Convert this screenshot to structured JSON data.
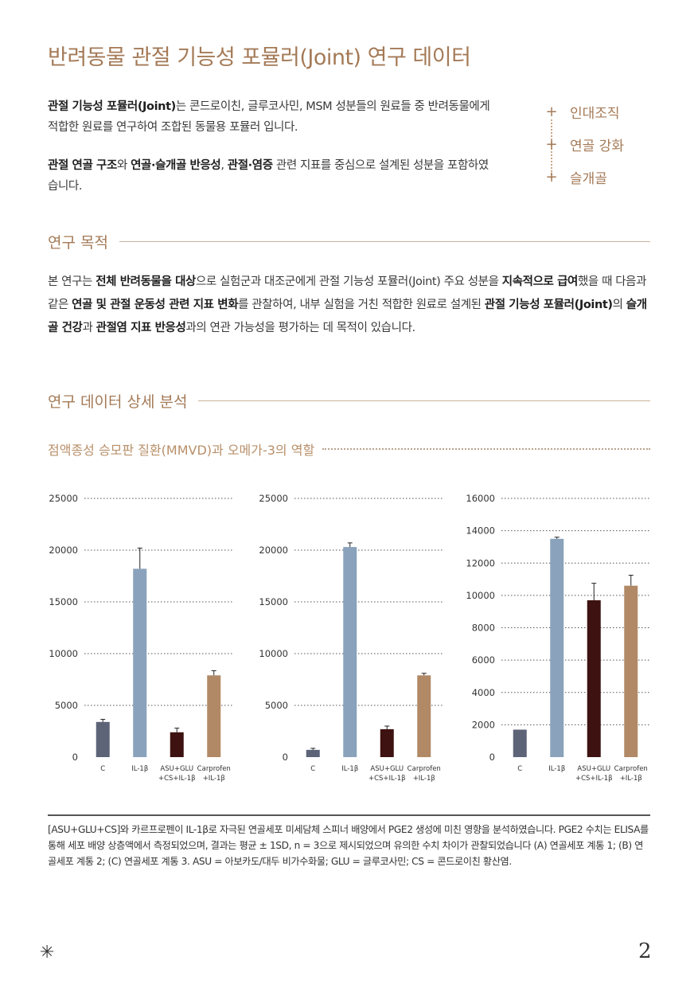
{
  "title": "반려동물 관절 기능성 포뮬러(Joint) 연구 데이터",
  "intro": {
    "p1_bold": "관절 기능성 포뮬러(Joint)",
    "p1_text": "는 콘드로이친, 글루코사민, MSM 성분들의 원료들 중 반려동물에게 적합한 원료를 연구하여 조합된 동물용 포뮬러 입니다.",
    "p2_bold1": "관절 연골 구조",
    "p2_t1": "와 ",
    "p2_bold2": "연골·슬개골 반응성",
    "p2_t2": ", ",
    "p2_bold3": "관절·염증",
    "p2_t3": " 관련 지표를 중심으로 설계된 성분을 포함하였습니다."
  },
  "tags": [
    "인대조직",
    "연골 강화",
    "슬개골"
  ],
  "sections": {
    "purpose_title": "연구 목적",
    "data_title": "연구 데이터 상세 분석",
    "sub_title": "점액종성 승모판 질환(MMVD)과 오메가-3의 역할"
  },
  "purpose": {
    "t1": "본 연구는 ",
    "b1": "전체 반려동물을 대상",
    "t2": "으로 실험군과 대조군에게 관절 기능성 포뮬러(Joint) 주요 성분을 ",
    "b2": "지속적으로 급여",
    "t3": "했을 때 다음과 같은 ",
    "b3": "연골 및 관절 운동성 관련 지표 변화",
    "t4": "를 관찰하여, 내부 실험을 거친 적합한 원료로 설계된 ",
    "b4": "관절 기능성 포뮬러(Joint)",
    "t5": "의 ",
    "b5": "슬개골 건강",
    "t6": "과 ",
    "b6": "관절염 지표 반응성",
    "t7": "과의 연관 가능성을 평가하는 데 목적이 있습니다."
  },
  "chart_data": [
    {
      "type": "bar",
      "ylim": [
        0,
        25000
      ],
      "yticks": [
        "0",
        "5000",
        "10000",
        "15000",
        "20000",
        "25000"
      ],
      "categories": [
        [
          "C",
          ""
        ],
        [
          "IL-1β",
          ""
        ],
        [
          "ASU+GLU",
          "+CS+IL-1β"
        ],
        [
          "Carprofen",
          "+IL-1β"
        ]
      ],
      "values": [
        3400,
        18200,
        2400,
        7900
      ],
      "errors": [
        250,
        2000,
        400,
        450
      ],
      "colors": [
        "#5e6478",
        "#8aa2bb",
        "#3d1210",
        "#b18966"
      ]
    },
    {
      "type": "bar",
      "ylim": [
        0,
        25000
      ],
      "yticks": [
        "0",
        "5000",
        "10000",
        "15000",
        "20000",
        "25000"
      ],
      "categories": [
        [
          "C",
          ""
        ],
        [
          "IL-1β",
          ""
        ],
        [
          "ASU+GLU",
          "+CS+IL-1β"
        ],
        [
          "Carprofen",
          "+IL-1β"
        ]
      ],
      "values": [
        700,
        20300,
        2700,
        7900
      ],
      "errors": [
        150,
        400,
        300,
        200
      ],
      "colors": [
        "#5e6478",
        "#8aa2bb",
        "#3d1210",
        "#b18966"
      ]
    },
    {
      "type": "bar",
      "ylim": [
        0,
        16000
      ],
      "yticks": [
        "0",
        "2000",
        "4000",
        "6000",
        "8000",
        "10000",
        "12000",
        "14000",
        "16000"
      ],
      "categories": [
        [
          "C",
          ""
        ],
        [
          "IL-1β",
          ""
        ],
        [
          "ASU+GLU",
          "+CS+IL-1β"
        ],
        [
          "Carprofen",
          "+IL-1β"
        ]
      ],
      "values": [
        1700,
        13500,
        9700,
        10600
      ],
      "errors": [
        0,
        100,
        1050,
        650
      ],
      "colors": [
        "#5e6478",
        "#8aa2bb",
        "#3d1210",
        "#b18966"
      ]
    }
  ],
  "caption": "[ASU+GLU+CS]와 카르프로펜이 IL-1β로 자극된 연골세포 미세담체 스피너 배양에서 PGE2 생성에 미친 영향을 분석하였습니다. PGE2 수치는 ELISA를 통해 세포 배양 상층액에서 측정되었으며, 결과는 평균 ± 1SD, n = 3으로 제시되었으며 유의한 수치 차이가 관찰되었습니다 (A) 연골세포 계통 1; (B) 연골세포 계통 2; (C) 연골세포 계통 3. ASU = 아보카도/대두 비가수화물; GLU = 글루코사민; CS = 콘드로이친 황산염.",
  "footer": {
    "star": "✳",
    "page": "2"
  }
}
